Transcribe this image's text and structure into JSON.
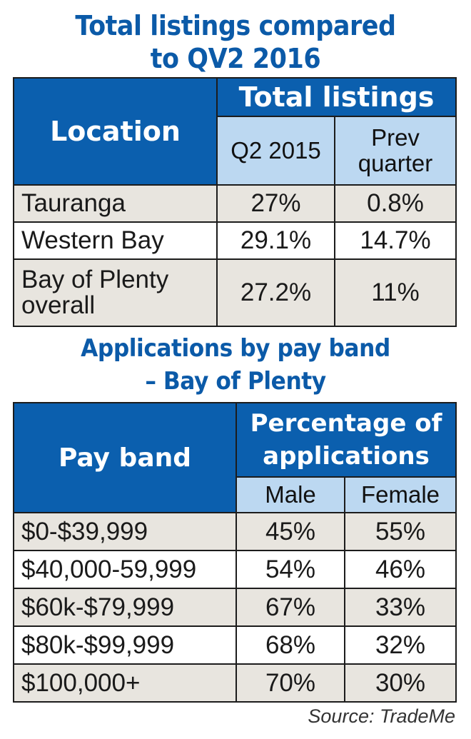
{
  "table1": {
    "title_line1": "Total listings compared",
    "title_line2": "to QV2 2016",
    "header_location": "Location",
    "header_group": "Total listings",
    "header_col1": "Q2 2015",
    "header_col2_line1": "Prev",
    "header_col2_line2": "quarter",
    "rows": [
      {
        "label": "Tauranga",
        "label2": "",
        "q2_2015": "27%",
        "prev_quarter": "0.8%"
      },
      {
        "label": "Western Bay",
        "label2": "",
        "q2_2015": "29.1%",
        "prev_quarter": "14.7%"
      },
      {
        "label": "Bay of Plenty",
        "label2": "overall",
        "q2_2015": "27.2%",
        "prev_quarter": "11%"
      }
    ]
  },
  "table2": {
    "title_line1": "Applications by pay band",
    "title_line2": "– Bay of Plenty",
    "header_payband": "Pay band",
    "header_group_line1": "Percentage of",
    "header_group_line2": "applications",
    "header_male": "Male",
    "header_female": "Female",
    "rows": [
      {
        "label": "$0-$39,999",
        "male": "45%",
        "female": "55%"
      },
      {
        "label": "$40,000-59,999",
        "male": "54%",
        "female": "46%"
      },
      {
        "label": "$60k-$79,999",
        "male": "67%",
        "female": "33%"
      },
      {
        "label": "$80k-$99,999",
        "male": "68%",
        "female": "32%"
      },
      {
        "label": "$100,000+",
        "male": "70%",
        "female": "30%"
      }
    ]
  },
  "source": "Source: TradeMe",
  "colors": {
    "title_blue": "#0b5aa8",
    "header_dark_blue": "#0b5fae",
    "header_light_blue": "#bcd8f1",
    "row_shade": "#e8e5df"
  },
  "chart_data": [
    {
      "type": "table",
      "title": "Total listings compared to QV2 2016",
      "columns": [
        "Location",
        "Q2 2015",
        "Prev quarter"
      ],
      "rows": [
        [
          "Tauranga",
          "27%",
          "0.8%"
        ],
        [
          "Western Bay",
          "29.1%",
          "14.7%"
        ],
        [
          "Bay of Plenty overall",
          "27.2%",
          "11%"
        ]
      ]
    },
    {
      "type": "table",
      "title": "Applications by pay band – Bay of Plenty",
      "columns": [
        "Pay band",
        "Male",
        "Female"
      ],
      "rows": [
        [
          "$0-$39,999",
          "45%",
          "55%"
        ],
        [
          "$40,000-59,999",
          "54%",
          "46%"
        ],
        [
          "$60k-$79,999",
          "67%",
          "33%"
        ],
        [
          "$80k-$99,999",
          "68%",
          "32%"
        ],
        [
          "$100,000+",
          "70%",
          "30%"
        ]
      ]
    }
  ]
}
